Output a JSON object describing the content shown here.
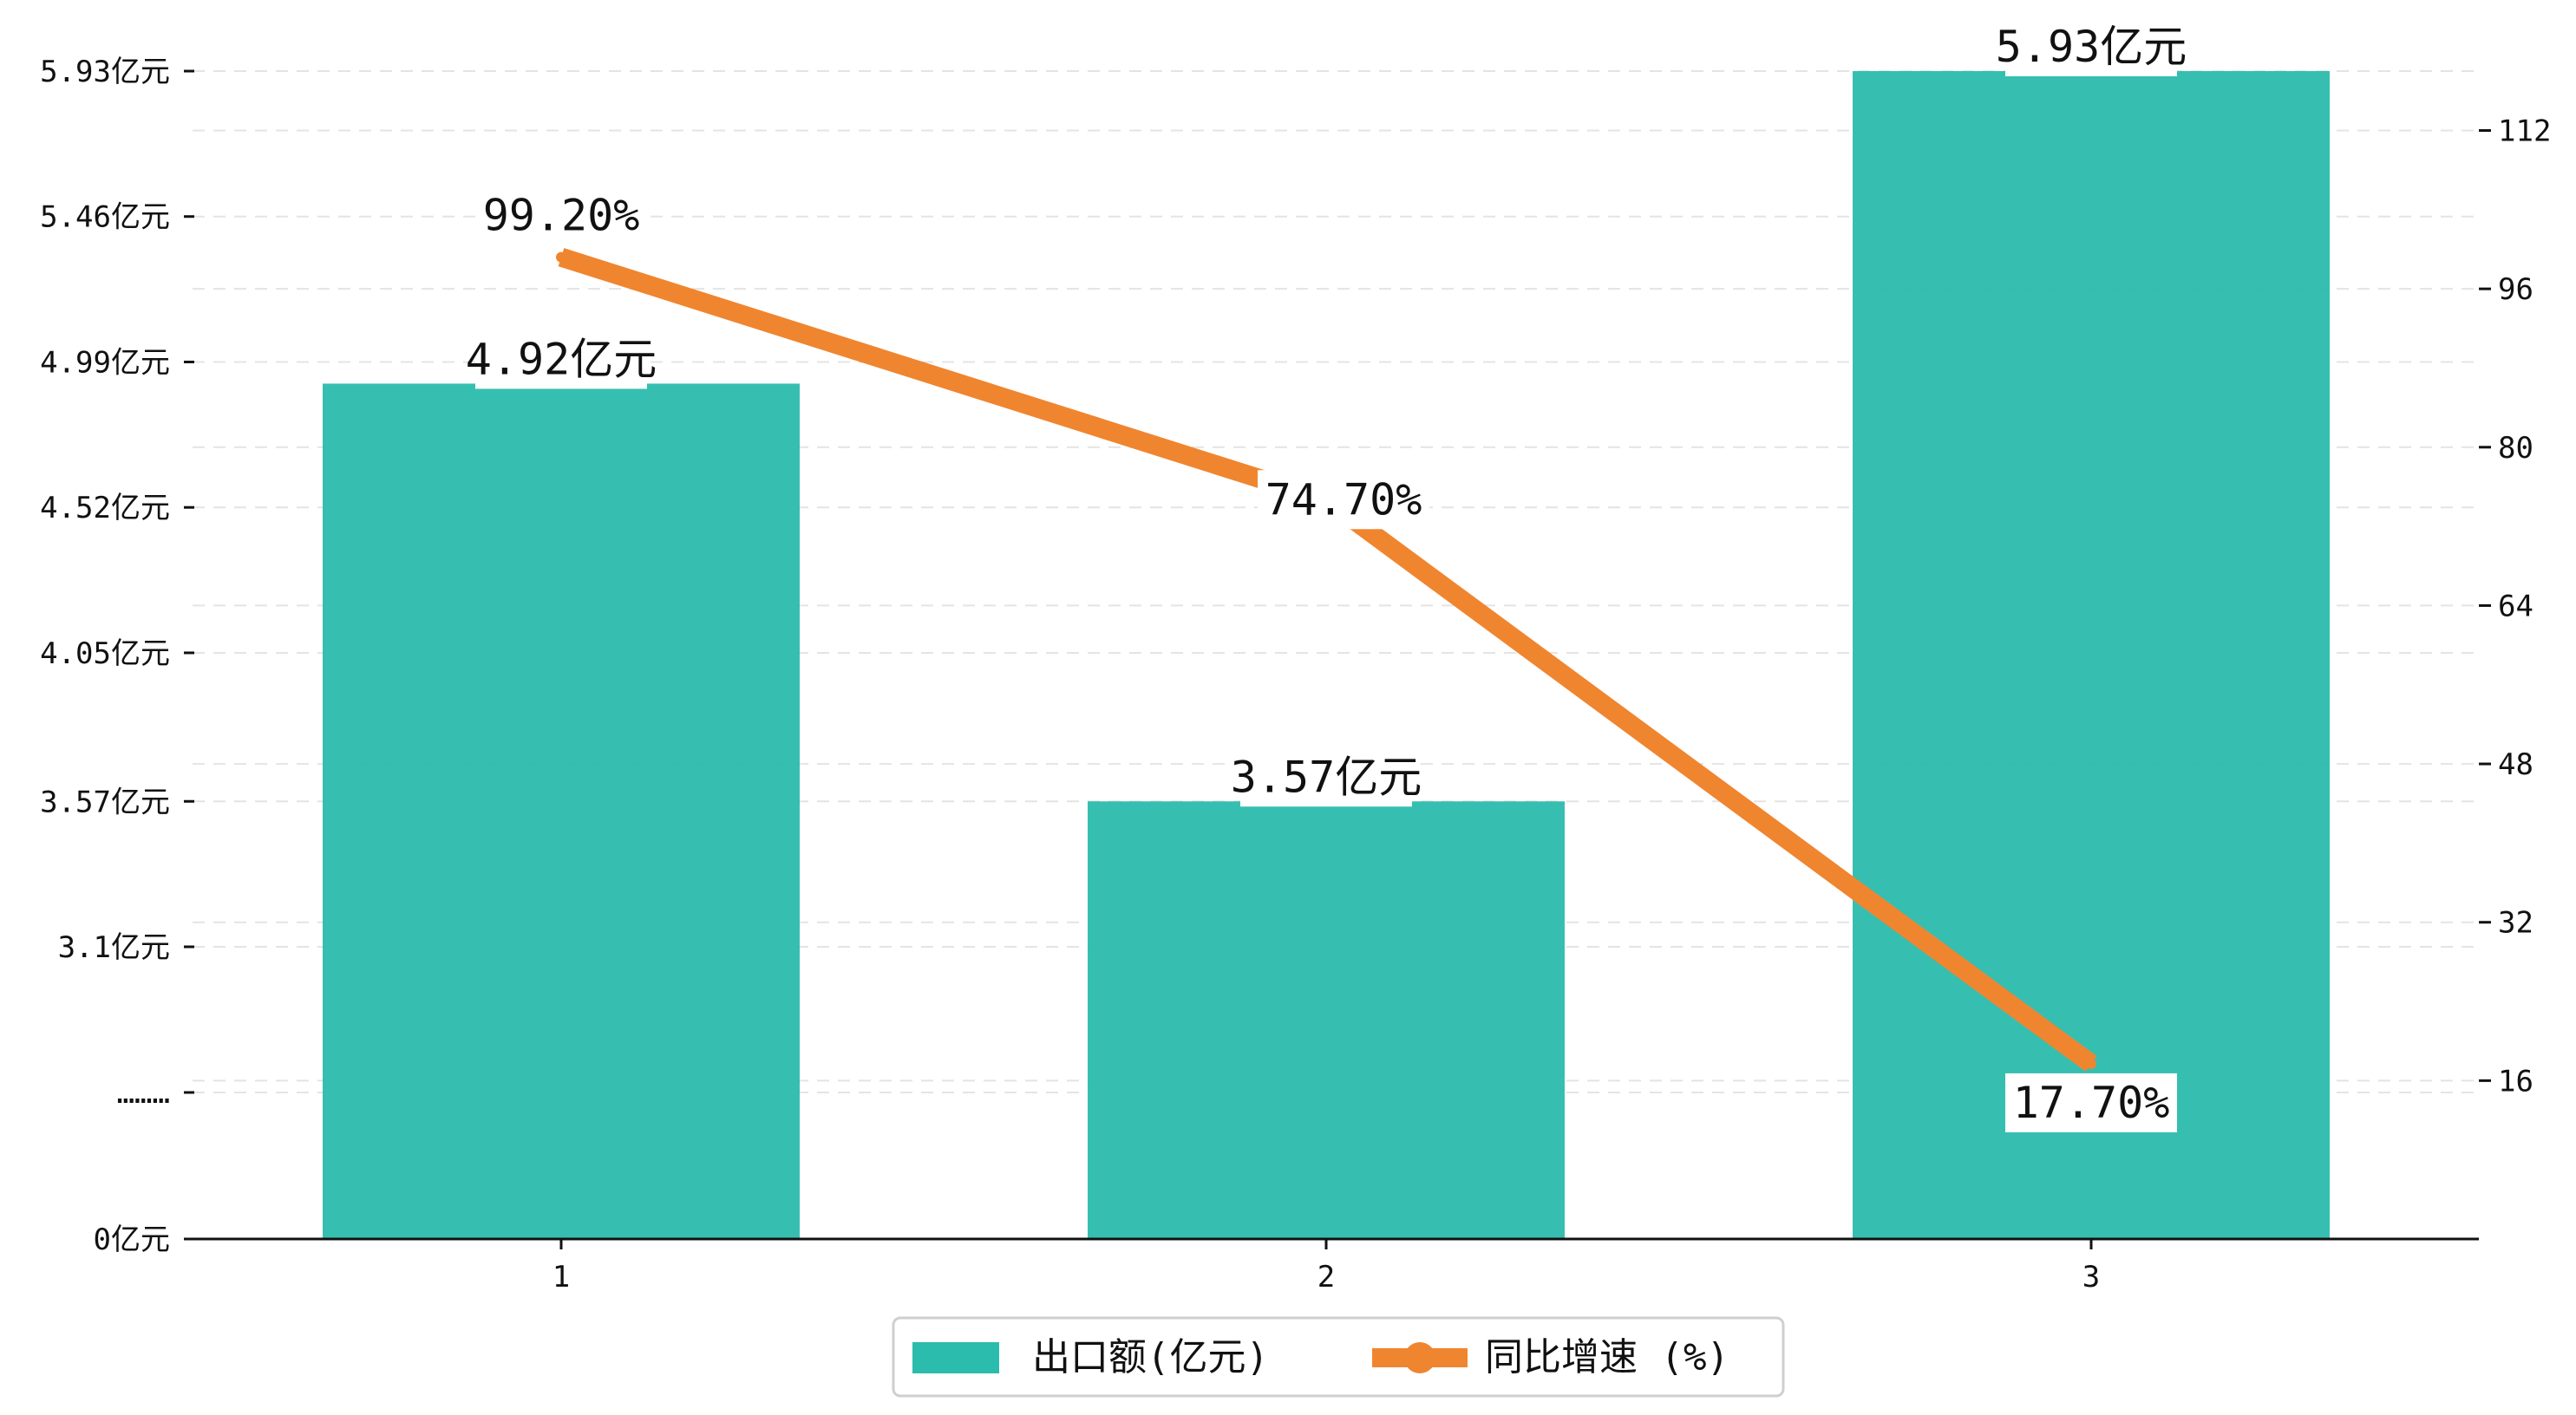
{
  "colors": {
    "bar": "#2bbcad",
    "line": "#f0852f",
    "grid": "#e4e4e4",
    "axis": "#111111",
    "label_bg": "#ffffff"
  },
  "chart_data": {
    "type": "bar",
    "title": "",
    "xlabel": "",
    "ylabel": "",
    "categories": [
      "1",
      "2",
      "3"
    ],
    "series": [
      {
        "name": "出口额(亿元)",
        "type": "bar",
        "axis": "left",
        "values": [
          4.92,
          3.57,
          5.93
        ],
        "labels": [
          "4.92亿元",
          "3.57亿元",
          "5.93亿元"
        ]
      },
      {
        "name": "同比增速 (%)",
        "type": "line",
        "axis": "right",
        "values": [
          99.2,
          74.7,
          17.7
        ],
        "labels": [
          "99.20%",
          "74.70%",
          "17.70%"
        ]
      }
    ],
    "left_axis": {
      "broken": true,
      "ticks": [
        {
          "value": 0,
          "label": "0亿元"
        },
        {
          "value": 1.0,
          "label": "………"
        },
        {
          "value": 3.1,
          "label": "3.1亿元"
        },
        {
          "value": 3.57,
          "label": "3.57亿元"
        },
        {
          "value": 4.05,
          "label": "4.05亿元"
        },
        {
          "value": 4.52,
          "label": "4.52亿元"
        },
        {
          "value": 4.99,
          "label": "4.99亿元"
        },
        {
          "value": 5.46,
          "label": "5.46亿元"
        },
        {
          "value": 5.93,
          "label": "5.93亿元"
        }
      ]
    },
    "right_axis": {
      "ylim": [
        0,
        118
      ],
      "ticks": [
        16,
        32,
        48,
        64,
        80,
        96,
        112
      ]
    },
    "grid": "dashed-horizontal",
    "legend": {
      "position": "bottom-center"
    }
  }
}
